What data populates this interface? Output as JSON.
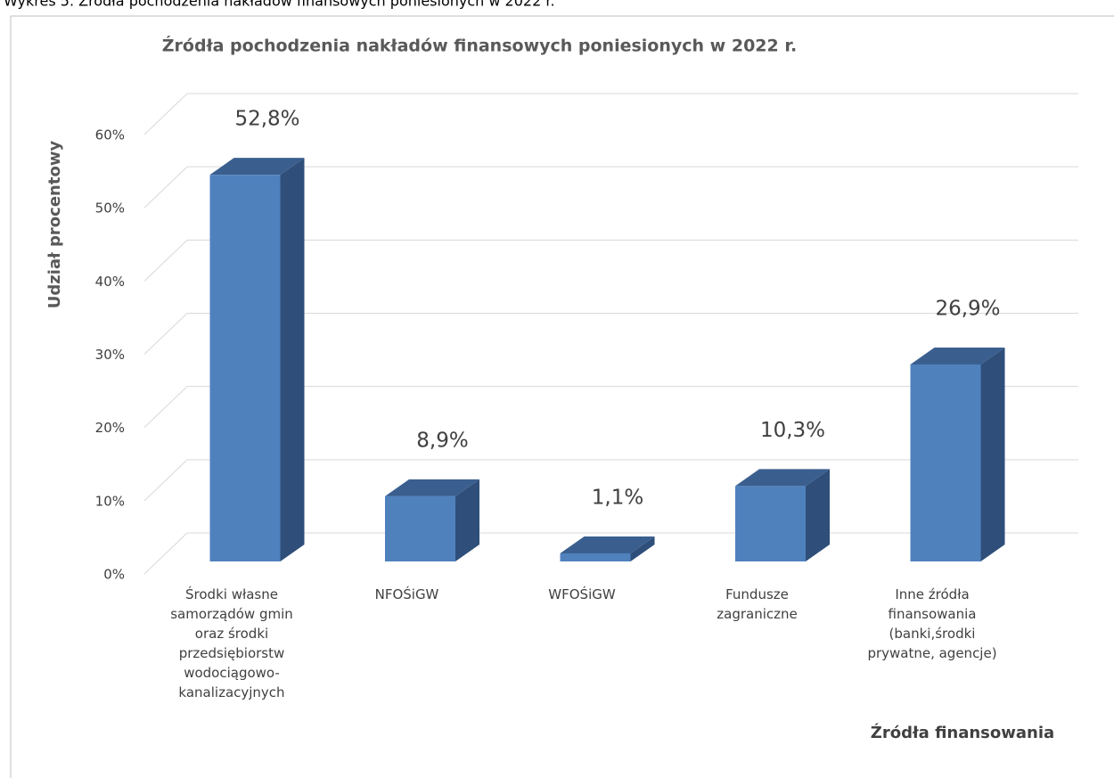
{
  "caption": "Wykres 5. Źródła pochodzenia nakładów finansowych poniesionych w 2022 r.",
  "chart_data": {
    "type": "bar3d",
    "title": "Źródła pochodzenia nakładów finansowych poniesionych w 2022 r.",
    "y_axis_label": "Udział procentowy",
    "x_axis_label": "Źródła finansowania",
    "categories": [
      "Środki własne samorządów gmin oraz środki przedsiębiorstw wodociągowo-kanalizacyjnych",
      "NFOŚiGW",
      "WFOŚiGW",
      "Fundusze zagraniczne",
      "Inne źródła finansowania (banki,środki prywatne, agencje)"
    ],
    "values": [
      52.8,
      8.9,
      1.1,
      10.3,
      26.9
    ],
    "value_labels": [
      "52,8%",
      "8,9%",
      "1,1%",
      "10,3%",
      "26,9%"
    ],
    "color": "#4f81bd",
    "ylim": [
      0,
      60
    ],
    "yticks": [
      {
        "value": 0,
        "label": "0%"
      },
      {
        "value": 10,
        "label": "10%"
      },
      {
        "value": 20,
        "label": "20%"
      },
      {
        "value": 30,
        "label": "30%"
      },
      {
        "value": 40,
        "label": "40%"
      },
      {
        "value": 50,
        "label": "50%"
      },
      {
        "value": 60,
        "label": "60%"
      }
    ],
    "grid": true
  }
}
